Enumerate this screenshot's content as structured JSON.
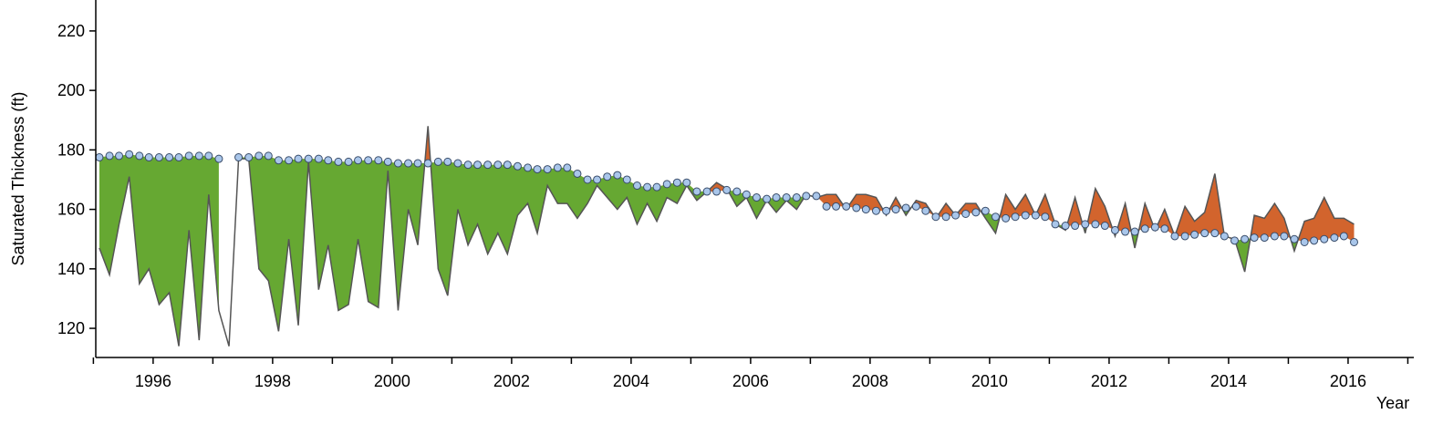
{
  "chart_data": {
    "type": "difference",
    "y_label": "Saturated Thickness (ft)",
    "x_label": "Year",
    "x": [
      1995.1,
      1995.27,
      1995.43,
      1995.6,
      1995.77,
      1995.93,
      1996.1,
      1996.27,
      1996.43,
      1996.6,
      1996.77,
      1996.93,
      1997.1,
      1997.27,
      1997.43,
      1997.6,
      1997.77,
      1997.93,
      1998.1,
      1998.27,
      1998.43,
      1998.6,
      1998.77,
      1998.93,
      1999.1,
      1999.27,
      1999.43,
      1999.6,
      1999.77,
      1999.93,
      2000.1,
      2000.27,
      2000.43,
      2000.6,
      2000.77,
      2000.93,
      2001.1,
      2001.27,
      2001.43,
      2001.6,
      2001.77,
      2001.93,
      2002.1,
      2002.27,
      2002.43,
      2002.6,
      2002.77,
      2002.93,
      2003.1,
      2003.27,
      2003.43,
      2003.6,
      2003.77,
      2003.93,
      2004.1,
      2004.27,
      2004.43,
      2004.6,
      2004.77,
      2004.93,
      2005.1,
      2005.27,
      2005.43,
      2005.6,
      2005.77,
      2005.93,
      2006.1,
      2006.27,
      2006.43,
      2006.6,
      2006.77,
      2006.93,
      2007.1,
      2007.27,
      2007.43,
      2007.6,
      2007.77,
      2007.93,
      2008.1,
      2008.27,
      2008.43,
      2008.6,
      2008.77,
      2008.93,
      2009.1,
      2009.27,
      2009.43,
      2009.6,
      2009.77,
      2009.93,
      2010.1,
      2010.27,
      2010.43,
      2010.6,
      2010.77,
      2010.93,
      2011.1,
      2011.27,
      2011.43,
      2011.6,
      2011.77,
      2011.93,
      2012.1,
      2012.27,
      2012.43,
      2012.6,
      2012.77,
      2012.93,
      2013.1,
      2013.27,
      2013.43,
      2013.6,
      2013.77,
      2013.93,
      2014.1,
      2014.27,
      2014.43,
      2014.6,
      2014.77,
      2014.93,
      2015.1,
      2015.27,
      2015.43,
      2015.6,
      2015.77,
      2015.93,
      2016.1
    ],
    "series": [
      {
        "color": "#a9c6ea",
        "values": [
          177.5,
          178,
          178,
          178.5,
          178,
          177.5,
          177.5,
          177.5,
          177.5,
          178,
          178,
          178,
          177,
          null,
          177.5,
          177.5,
          178,
          178,
          176.5,
          176.5,
          177,
          177,
          177,
          176.5,
          176,
          176,
          176.5,
          176.5,
          176.5,
          176,
          175.5,
          175.5,
          175.5,
          175.5,
          176,
          176,
          175.5,
          175,
          175,
          175,
          175,
          175,
          174.5,
          174,
          173.5,
          173.5,
          174,
          174,
          172,
          170,
          170,
          171,
          171.5,
          170,
          168,
          167.5,
          167.5,
          168.5,
          169,
          169,
          166,
          166,
          166,
          166.5,
          166,
          165,
          164,
          163.5,
          164,
          164,
          164,
          164.5,
          164.5,
          161,
          161,
          161,
          160.5,
          160,
          159.5,
          159.5,
          160,
          160.5,
          161,
          159.5,
          157.5,
          157.5,
          158,
          158.5,
          159,
          159.5,
          157.5,
          157,
          157.5,
          158,
          158,
          157.5,
          155,
          154.5,
          154.5,
          155,
          155,
          154.5,
          153,
          152.5,
          152.5,
          153.5,
          154,
          153.5,
          151,
          151,
          151.5,
          152,
          152,
          151,
          149.5,
          150,
          150.5,
          150.5,
          151,
          151,
          150,
          149,
          149.5,
          150,
          150.5,
          151,
          149
        ]
      },
      {
        "color": "#555555",
        "values": [
          147,
          138,
          155,
          171,
          135,
          140,
          128,
          132,
          114,
          153,
          116,
          165,
          126,
          114,
          177,
          177,
          140,
          136,
          119,
          150,
          121,
          176,
          133,
          148,
          126,
          128,
          150,
          129,
          127,
          173,
          126,
          160,
          148,
          188,
          140,
          131,
          160,
          148,
          155,
          145,
          152,
          145,
          158,
          162,
          152,
          168,
          162,
          162,
          157,
          162,
          168,
          164,
          160,
          164,
          155,
          162,
          156,
          164,
          162,
          168,
          163,
          166,
          169,
          167,
          161,
          164,
          157,
          163,
          159,
          163,
          160,
          165,
          164,
          165,
          165,
          160,
          165,
          165,
          164,
          158,
          164,
          158,
          163,
          162,
          157,
          162,
          158,
          162,
          162,
          157,
          152,
          165,
          160,
          165,
          158,
          165,
          155,
          153,
          164,
          152,
          167,
          161,
          151,
          162,
          147,
          162,
          153,
          160,
          151,
          161,
          156,
          159,
          172,
          151,
          150,
          139,
          158,
          157,
          162,
          157,
          146,
          156,
          157,
          164,
          157,
          157,
          155
        ]
      }
    ],
    "below_color": "#66a832",
    "above_color": "#d2642d",
    "xlim": [
      1995.04,
      2017.1
    ],
    "ylim": [
      110.2,
      230.4
    ],
    "xticks": [
      1996,
      1998,
      2000,
      2002,
      2004,
      2006,
      2008,
      2010,
      2012,
      2014,
      2016
    ],
    "xminor_ticks": [
      1995,
      1997,
      1999,
      2001,
      2003,
      2005,
      2007,
      2009,
      2011,
      2013,
      2015,
      2017
    ],
    "yticks": [
      120,
      140,
      160,
      180,
      200,
      220
    ]
  }
}
